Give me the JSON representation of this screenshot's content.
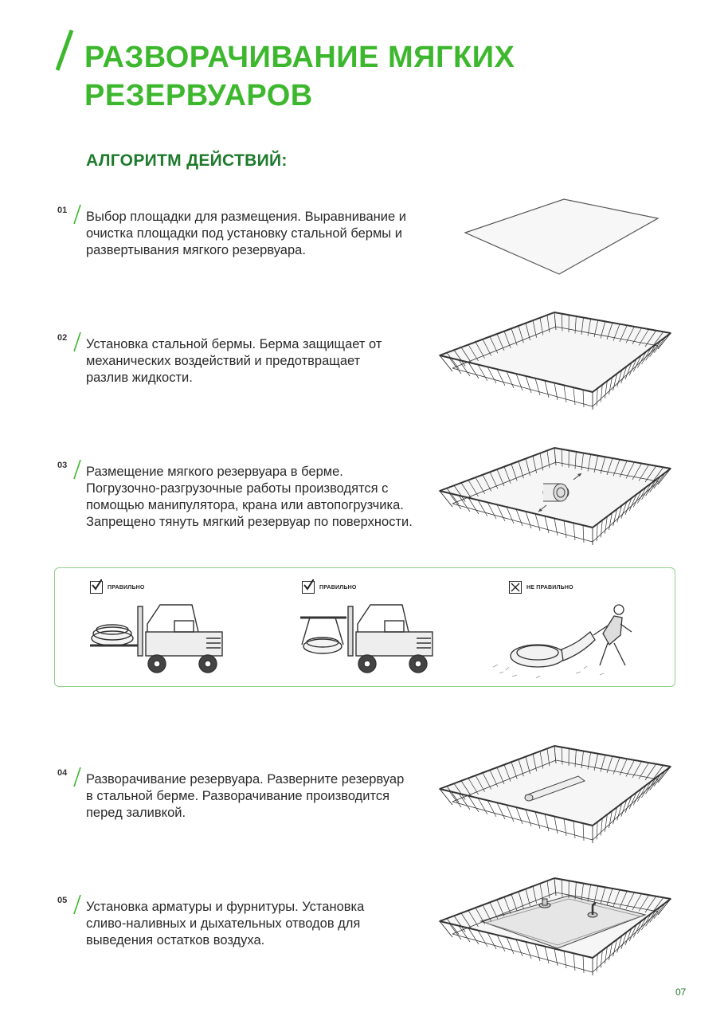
{
  "header": {
    "title_line1": "РАЗВОРАЧИВАНИЕ МЯГКИХ",
    "title_line2": "РЕЗЕРВУАРОВ",
    "subtitle": "АЛГОРИТМ ДЕЙСТВИЙ:",
    "accent_color": "#3db82e",
    "dark_green": "#1e7a2c"
  },
  "steps": [
    {
      "num": "01",
      "lines": [
        "Выбор площадки для размещения. Выравнивание и",
        "очистка площадки под установку стальной бермы и",
        "развертывания мягкого резервуара."
      ]
    },
    {
      "num": "02",
      "lines": [
        "Установка стальной бермы. Берма защищает от",
        "механических воздействий и предотвращает",
        "разлив жидкости."
      ]
    },
    {
      "num": "03",
      "lines": [
        "Размещение мягкого резервуара в берме.",
        "Погрузочно-разгрузочные работы производятся с",
        "помощью манипулятора, крана или автопогрузчика.",
        "Запрещено тянуть мягкий резервуар по поверхности."
      ]
    },
    {
      "num": "04",
      "lines": [
        "Разворачивание резервуара. Разверните резервуар",
        "в стальной берме. Разворачивание производится",
        "перед заливкой."
      ]
    },
    {
      "num": "05",
      "lines": [
        "Установка арматуры и фурнитуры. Установка",
        "сливо-наливных и дыхательных отводов для",
        "выведения остатков воздуха."
      ]
    }
  ],
  "handling_panel": {
    "items": [
      {
        "label": "ПРАВИЛЬНО",
        "mark": "check-icon"
      },
      {
        "label": "ПРАВИЛЬНО",
        "mark": "check-icon"
      },
      {
        "label": "НЕ ПРАВИЛЬНО",
        "mark": "cross-icon"
      }
    ]
  },
  "page_number": "07"
}
